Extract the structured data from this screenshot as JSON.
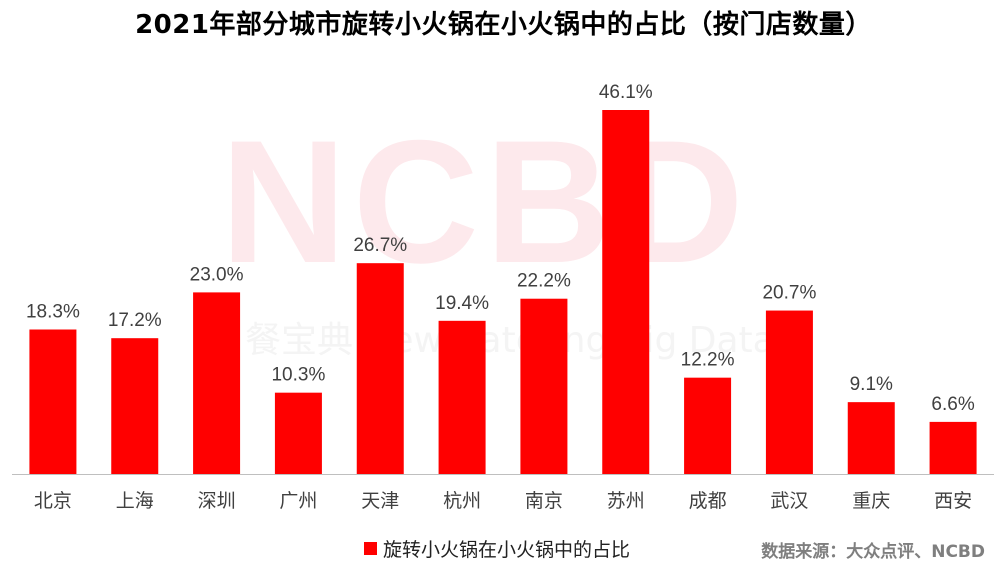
{
  "title": "2021年部分城市旋转小火锅在小火锅中的占比（按门店数量）",
  "watermark": {
    "logo": "NCBD",
    "text": "餐宝典 New Catering Big Data"
  },
  "source": "数据来源：大众点评、NCBD",
  "colors": {
    "bar": "#ff0000",
    "axis": "#bfbfbf",
    "label": "#404040",
    "watermark": "#fde9ec"
  },
  "chart_data": {
    "type": "bar",
    "categories": [
      "北京",
      "上海",
      "深圳",
      "广州",
      "天津",
      "杭州",
      "南京",
      "苏州",
      "成都",
      "武汉",
      "重庆",
      "西安"
    ],
    "series": [
      {
        "name": "旋转小火锅在小火锅中的占比",
        "values": [
          18.3,
          17.2,
          23.0,
          10.3,
          26.7,
          19.4,
          22.2,
          46.1,
          12.2,
          20.7,
          9.1,
          6.6
        ],
        "labels": [
          "18.3%",
          "17.2%",
          "23.0%",
          "10.3%",
          "26.7%",
          "19.4%",
          "22.2%",
          "46.1%",
          "12.2%",
          "20.7%",
          "9.1%",
          "6.6%"
        ]
      }
    ],
    "ylim": [
      0,
      46.1
    ],
    "grid": false,
    "legend": "bottom"
  }
}
